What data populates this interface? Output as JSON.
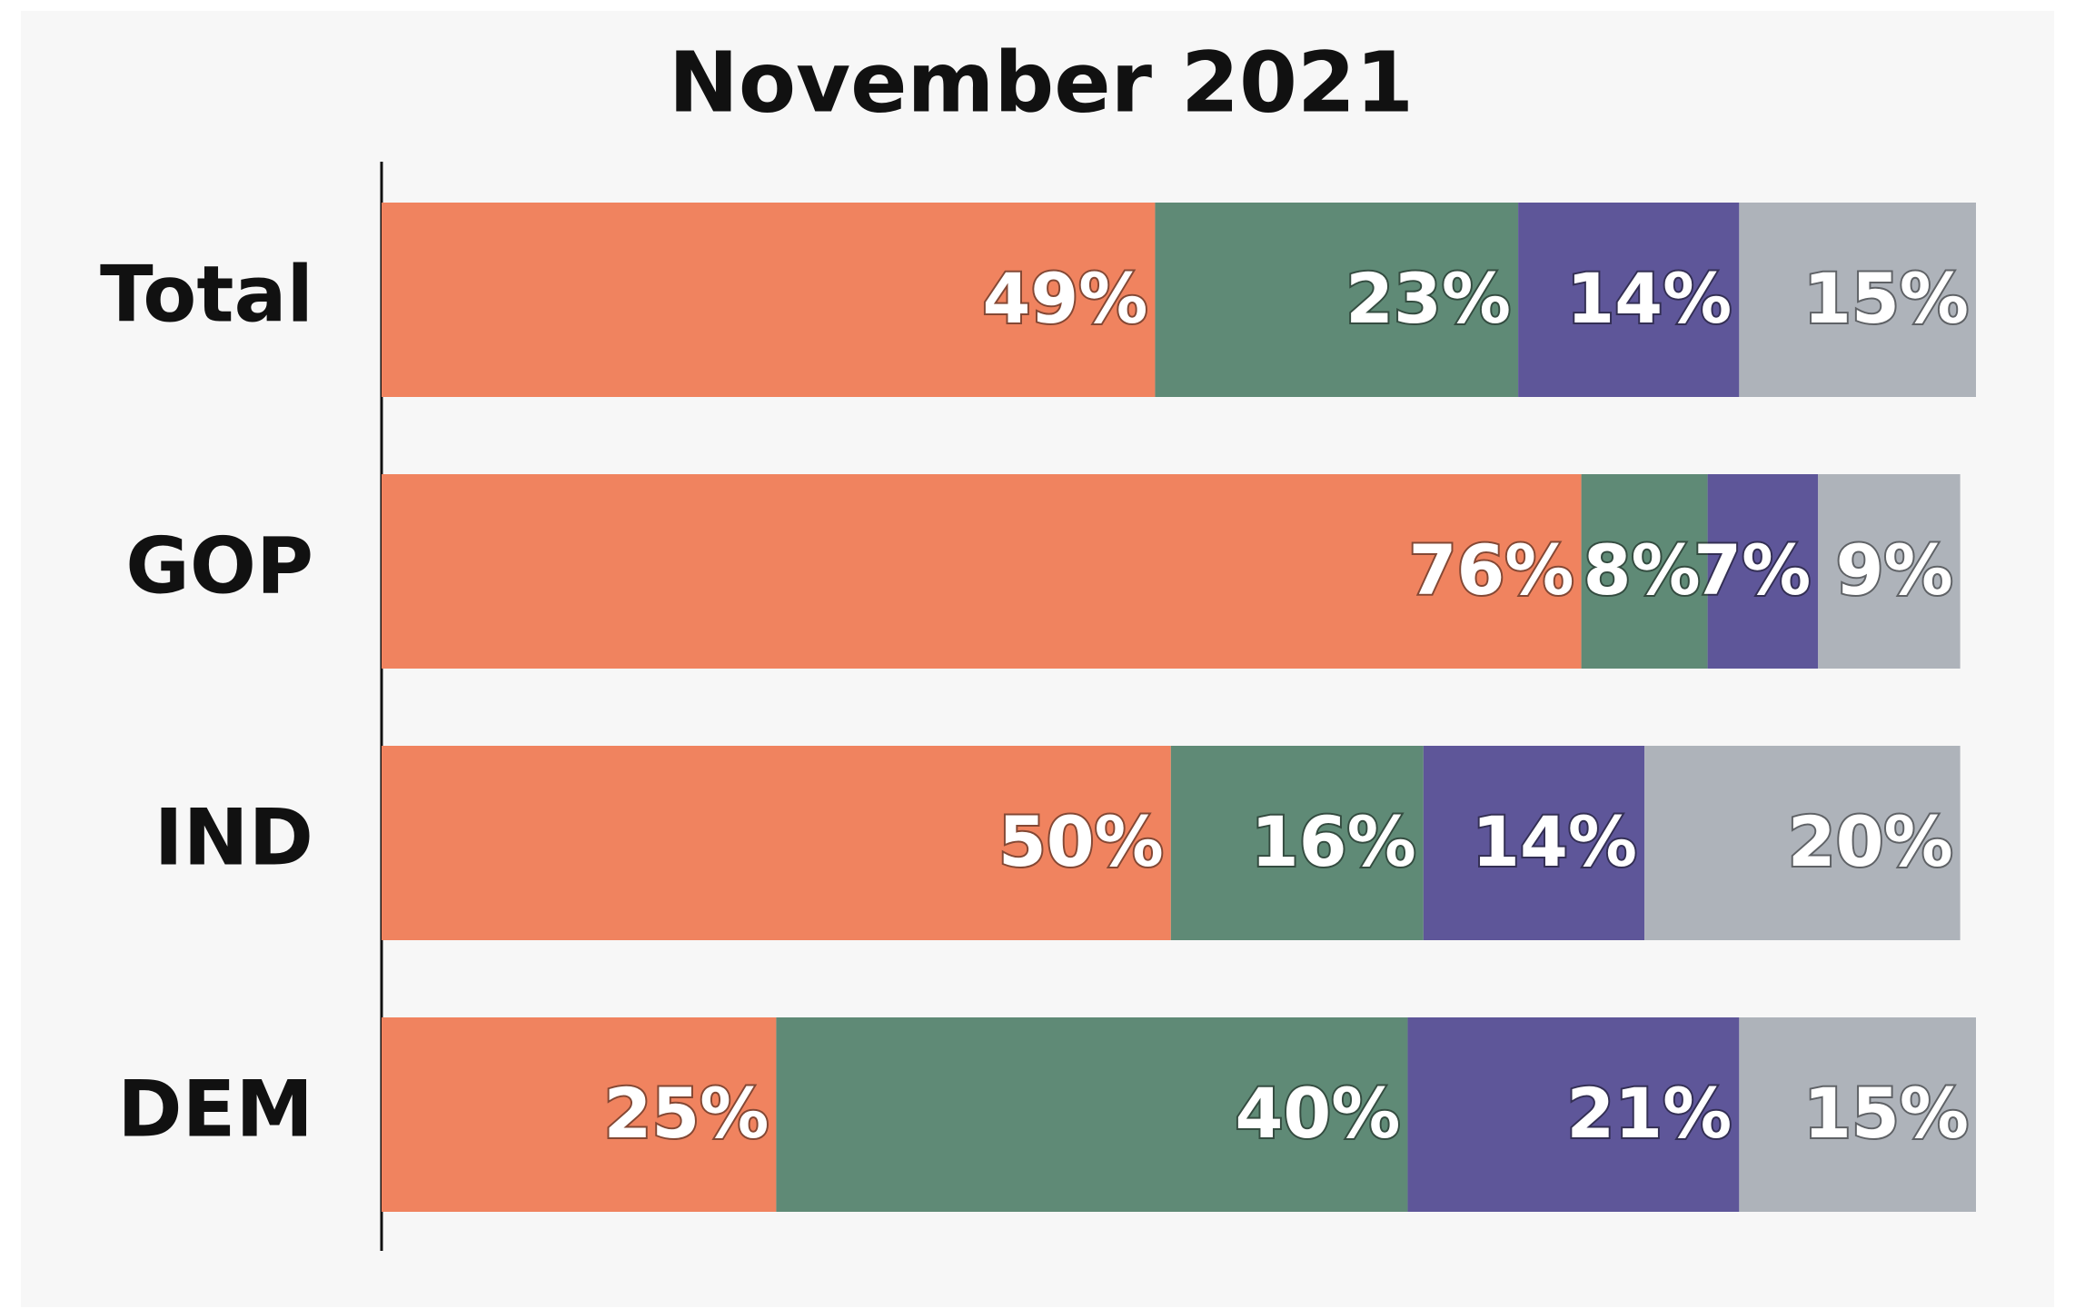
{
  "chart_data": {
    "type": "stacked-bar",
    "orientation": "horizontal",
    "title": "November 2021",
    "categories": [
      "Total",
      "GOP",
      "IND",
      "DEM"
    ],
    "xlim": [
      0,
      101
    ],
    "series": [
      {
        "color": "#f0835f",
        "values": [
          49,
          76,
          50,
          25
        ],
        "value_labels": [
          "49%",
          "76%",
          "50%",
          "25%"
        ]
      },
      {
        "color": "#5f8a76",
        "values": [
          23,
          8,
          16,
          40
        ],
        "value_labels": [
          "23%",
          "8%",
          "16%",
          "40%"
        ]
      },
      {
        "color": "#5e5699",
        "values": [
          14,
          7,
          14,
          21
        ],
        "value_labels": [
          "14%",
          "7%",
          "14%",
          "21%"
        ]
      },
      {
        "color": "#aeb3ba",
        "values": [
          15,
          9,
          20,
          15
        ],
        "value_labels": [
          "15%",
          "9%",
          "20%",
          "15%"
        ]
      }
    ]
  }
}
